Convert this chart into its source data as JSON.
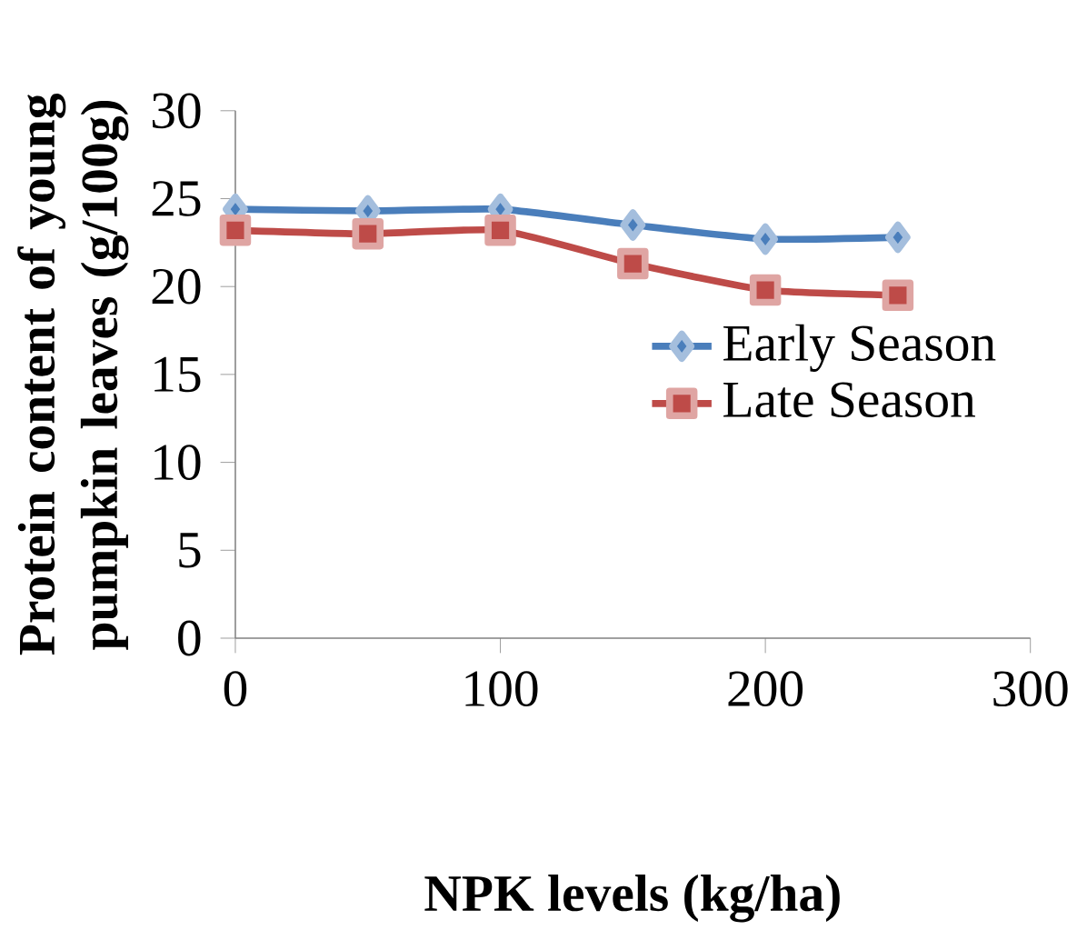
{
  "chart_data": {
    "type": "line",
    "xlabel": "NPK levels (kg/ha)",
    "ylabel": "Protein content of young pumpkin leaves (g/100g)",
    "x": [
      0,
      50,
      100,
      150,
      200,
      250
    ],
    "series": [
      {
        "name": "Early Season",
        "color": "#4a7ebb",
        "marker": "diamond",
        "values": [
          24.4,
          24.3,
          24.4,
          23.5,
          22.7,
          22.8
        ]
      },
      {
        "name": "Late Season",
        "color": "#be4b48",
        "marker": "square",
        "values": [
          23.2,
          23.0,
          23.2,
          21.3,
          19.8,
          19.5
        ]
      }
    ],
    "xlim": [
      0,
      300
    ],
    "xticks": [
      0,
      100,
      200,
      300
    ],
    "ylim": [
      0,
      30
    ],
    "yticks": [
      0,
      5,
      10,
      15,
      20,
      25,
      30
    ],
    "grid": false,
    "legend": "right",
    "line_style": "solid"
  }
}
